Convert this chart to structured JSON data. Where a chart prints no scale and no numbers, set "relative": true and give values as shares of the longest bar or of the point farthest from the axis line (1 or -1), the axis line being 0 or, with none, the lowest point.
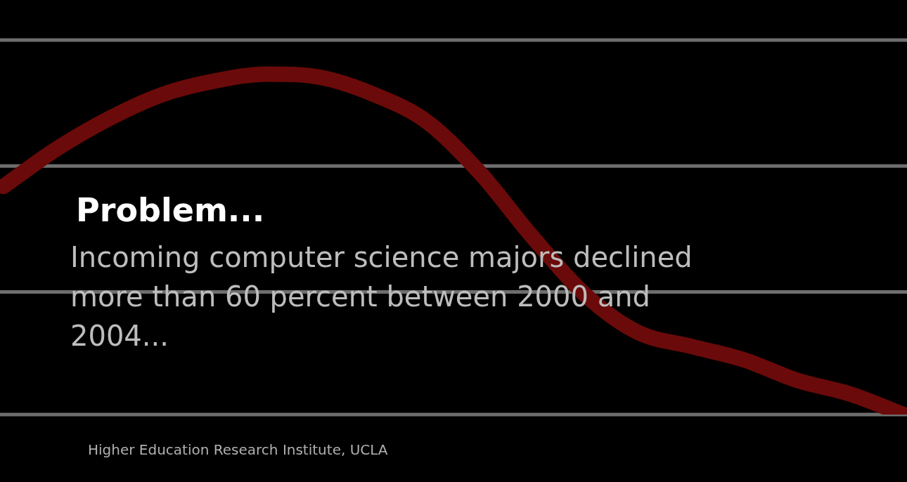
{
  "chart_data": {
    "type": "line",
    "title": "Problem...",
    "subtitle": "Incoming computer science majors declined more than 60 percent between 2000 and 2004...",
    "annotations": [
      "Higher Education Research Institute, UCLA"
    ],
    "relative": true,
    "ref_lines": [
      {
        "axis": "y",
        "value": 0,
        "color": "#6e6e6e"
      },
      {
        "axis": "y",
        "value": 0.36,
        "color": "#6e6e6e"
      },
      {
        "axis": "y",
        "value": 0.73,
        "color": "#6e6e6e"
      },
      {
        "axis": "y",
        "value": 1.1,
        "color": "#6e6e6e"
      }
    ],
    "marker": "none",
    "categories": [
      null,
      null,
      null,
      null,
      null,
      null,
      null,
      null,
      null,
      null,
      null,
      null,
      null,
      null,
      null,
      null,
      null,
      null
    ],
    "series": [
      {
        "color": "#6b0a0a",
        "values": [
          0.67,
          0.78,
          0.87,
          0.94,
          0.98,
          1,
          0.99,
          0.94,
          0.86,
          0.71,
          0.52,
          0.35,
          0.24,
          0.2,
          0.16,
          0.1,
          0.06,
          0
        ]
      }
    ]
  }
}
